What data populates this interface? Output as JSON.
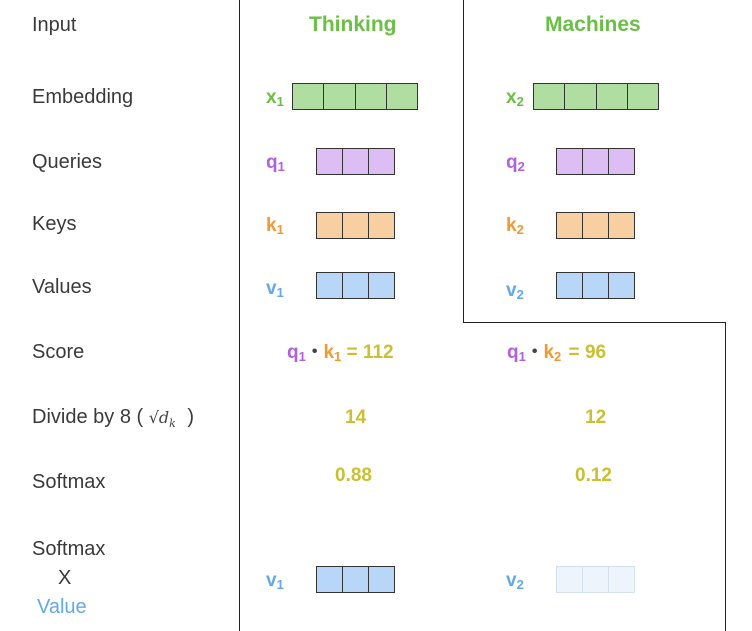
{
  "labels": {
    "input": "Input",
    "embedding": "Embedding",
    "queries": "Queries",
    "keys": "Keys",
    "values": "Values",
    "score": "Score",
    "divide_prefix": "Divide by 8 (",
    "divide_sqrt": "√d",
    "divide_sqrt_sub": "k",
    "divide_suffix": ")",
    "softmax": "Softmax",
    "softmax_value_1": "Softmax",
    "softmax_value_2": "X",
    "softmax_value_3": "Value"
  },
  "words": [
    "Thinking",
    "Machines"
  ],
  "tokens": [
    {
      "x": "x",
      "x_sub": "1",
      "q": "q",
      "q_sub": "1",
      "k": "k",
      "k_sub": "1",
      "v": "v",
      "v_sub": "1",
      "score_expr": {
        "q": "q",
        "q_sub": "1",
        "dot": "•",
        "k": "k",
        "k_sub": "1",
        "eq": "=",
        "value": "112"
      },
      "divided": "14",
      "softmax": "0.88",
      "out_v": "v",
      "out_v_sub": "1"
    },
    {
      "x": "x",
      "x_sub": "2",
      "q": "q",
      "q_sub": "2",
      "k": "k",
      "k_sub": "2",
      "v": "v",
      "v_sub": "2",
      "score_expr": {
        "q": "q",
        "q_sub": "1",
        "dot": "•",
        "k": "k",
        "k_sub": "2",
        "eq": "=",
        "value": "96"
      },
      "divided": "12",
      "softmax": "0.12",
      "out_v": "v",
      "out_v_sub": "2"
    }
  ],
  "colors": {
    "word": "#6abf45",
    "embedding_fill": "#b0dea0",
    "query_fill": "#dcbdf4",
    "key_fill": "#f8cfa0",
    "value_fill": "#b7d6f8",
    "value_faded_fill": "#eef4fc",
    "x_color": "#6abf45",
    "q_color": "#b161e0",
    "k_color": "#ef9a32",
    "v_color": "#63a8ea",
    "number_color": "#c9c032"
  },
  "softmax_weight_display": [
    1.0,
    0.12
  ]
}
